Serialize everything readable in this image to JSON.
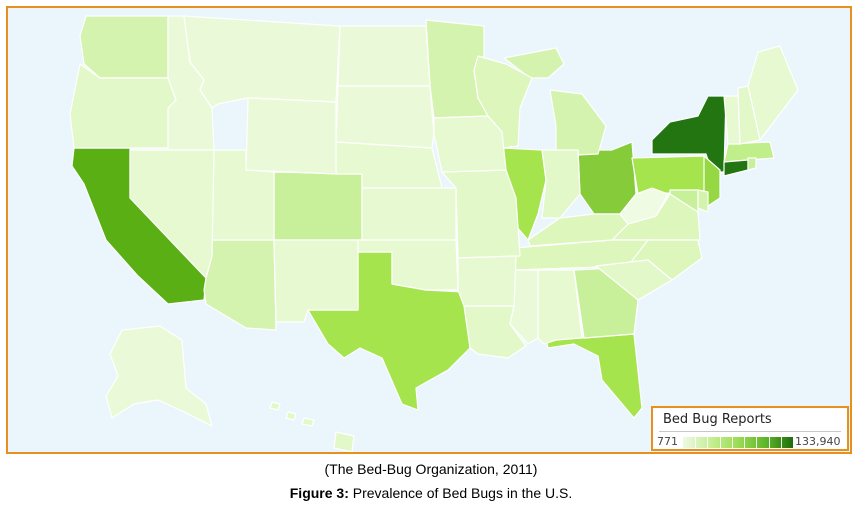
{
  "legend": {
    "title": "Bed Bug Reports",
    "min_label": "771",
    "max_label": "133,940",
    "min_value": 771,
    "max_value": 133940,
    "color_low": "#eef9e4",
    "color_high": "#1f6d0e"
  },
  "citation": "(The Bed-Bug Organization, 2011)",
  "caption": {
    "label": "Figure 3:",
    "text": " Prevalence of Bed Bugs in the U.S."
  },
  "colors": {
    "frame_border": "#e8901e",
    "ocean": "#eaf5fc"
  },
  "state_shading": [
    {
      "state": "New York",
      "color": "#237512"
    },
    {
      "state": "California",
      "color": "#5aaf14"
    },
    {
      "state": "Ohio",
      "color": "#86cc3a"
    },
    {
      "state": "Texas",
      "color": "#a6e44e"
    },
    {
      "state": "Illinois",
      "color": "#a6e44e"
    },
    {
      "state": "Pennsylvania",
      "color": "#a6e44e"
    },
    {
      "state": "New Jersey",
      "color": "#96d844"
    },
    {
      "state": "Florida",
      "color": "#a6e44e"
    },
    {
      "state": "Colorado",
      "color": "#c8f09a"
    },
    {
      "state": "Arizona",
      "color": "#d4f3ae"
    },
    {
      "state": "Georgia",
      "color": "#c8f09a"
    },
    {
      "state": "Washington",
      "color": "#d4f3ae"
    },
    {
      "state": "Minnesota",
      "color": "#d4f3ae"
    },
    {
      "state": "Michigan",
      "color": "#d4f3ae"
    },
    {
      "state": "Massachusetts",
      "color": "#bfee8a"
    },
    {
      "state": "Connecticut",
      "color": "#237512"
    },
    {
      "state": "Maryland",
      "color": "#c8f09a"
    },
    {
      "state": "Virginia",
      "color": "#dcf6bc"
    },
    {
      "state": "North Carolina",
      "color": "#dcf6bc"
    },
    {
      "state": "Tennessee",
      "color": "#dcf6bc"
    },
    {
      "state": "Kentucky",
      "color": "#dcf6bc"
    },
    {
      "state": "Wisconsin",
      "color": "#dcf6bc"
    },
    {
      "state": "Indiana",
      "color": "#e2f8c8"
    },
    {
      "state": "Oregon",
      "color": "#e2f8c8"
    },
    {
      "state": "Missouri",
      "color": "#e2f8c8"
    },
    {
      "state": "Louisiana",
      "color": "#e2f8c8"
    },
    {
      "state": "South Carolina",
      "color": "#e2f8c8"
    },
    {
      "state": "Alabama",
      "color": "#e6f9d0"
    },
    {
      "state": "Mississippi",
      "color": "#eafad8"
    },
    {
      "state": "Iowa",
      "color": "#e6f9d0"
    },
    {
      "state": "Kansas",
      "color": "#e6f9d0"
    },
    {
      "state": "Oklahoma",
      "color": "#e6f9d0"
    },
    {
      "state": "Nebraska",
      "color": "#e6f9d0"
    },
    {
      "state": "Utah",
      "color": "#e6f9d0"
    },
    {
      "state": "Nevada",
      "color": "#e6f9d0"
    },
    {
      "state": "New Mexico",
      "color": "#e6f9d0"
    },
    {
      "state": "Arkansas",
      "color": "#e6f9d0"
    },
    {
      "state": "Idaho",
      "color": "#eafad8"
    },
    {
      "state": "Montana",
      "color": "#eafad8"
    },
    {
      "state": "Wyoming",
      "color": "#eafad8"
    },
    {
      "state": "North Dakota",
      "color": "#eafad8"
    },
    {
      "state": "South Dakota",
      "color": "#eafad8"
    },
    {
      "state": "West Virginia",
      "color": "#f0fbe4"
    },
    {
      "state": "Maine",
      "color": "#e6f9d0"
    },
    {
      "state": "Vermont",
      "color": "#e6f9d0"
    },
    {
      "state": "New Hampshire",
      "color": "#e2f8c8"
    },
    {
      "state": "Delaware",
      "color": "#d4f3ae"
    },
    {
      "state": "Rhode Island",
      "color": "#c8f09a"
    },
    {
      "state": "Alaska",
      "color": "#eafad8"
    },
    {
      "state": "Hawaii",
      "color": "#e2f8c8"
    }
  ]
}
